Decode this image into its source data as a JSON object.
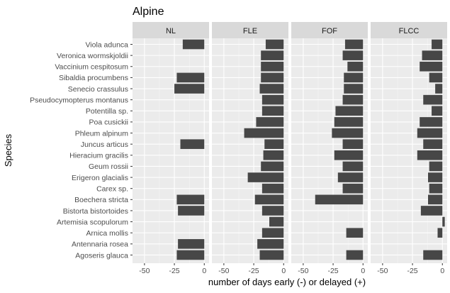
{
  "chart_data": {
    "type": "bar",
    "orientation": "horizontal",
    "title": "Alpine",
    "xlabel": "number of days early (-) or delayed (+)",
    "ylabel": "Species",
    "xlim": [
      -60,
      4
    ],
    "xticks": [
      -50,
      -25,
      0
    ],
    "xtick_labels": [
      "-50",
      "-25",
      "0"
    ],
    "grid": true,
    "bar_color": "#474747",
    "panel_background": "#ebebeb",
    "strip_background": "#d9d9d9",
    "categories": [
      "Viola adunca",
      "Veronica wormskjoldii",
      "Vaccinium cespitosum",
      "Sibaldia procumbens",
      "Senecio crassulus",
      "Pseudocymopterus montanus",
      "Potentilla sp.",
      "Poa cusickii",
      "Phleum alpinum",
      "Juncus articus",
      "Hieracium gracilis",
      "Geum rossii",
      "Erigeron glacialis",
      "Carex sp.",
      "Boechera stricta",
      "Bistorta bistortoides",
      "Artemisia scopulorum",
      "Arnica mollis",
      "Antennaria rosea",
      "Agoseris glauca"
    ],
    "series": [
      {
        "name": "NL",
        "values": [
          -18,
          null,
          null,
          -23,
          -25,
          null,
          null,
          null,
          null,
          -20,
          null,
          null,
          null,
          null,
          -23,
          -22,
          null,
          null,
          -22,
          -23
        ]
      },
      {
        "name": "FLE",
        "values": [
          -15,
          -19,
          -19,
          -19,
          -20,
          -18,
          -18,
          -23,
          -33,
          -16,
          -17,
          -19,
          -30,
          -18,
          -24,
          -18,
          -12,
          -18,
          -22,
          -20
        ]
      },
      {
        "name": "FOF",
        "values": [
          -15,
          -17,
          -13,
          -16,
          -16,
          -17,
          -23,
          -24,
          -26,
          -17,
          -24,
          -17,
          -21,
          -17,
          -40,
          null,
          null,
          -14,
          null,
          -14
        ]
      },
      {
        "name": "FLCC",
        "values": [
          -9,
          -17,
          -19,
          -11,
          -6,
          -16,
          -9,
          -19,
          -21,
          -16,
          -21,
          -11,
          -12,
          -11,
          -12,
          -18,
          2,
          -4,
          null,
          -16
        ]
      }
    ]
  }
}
